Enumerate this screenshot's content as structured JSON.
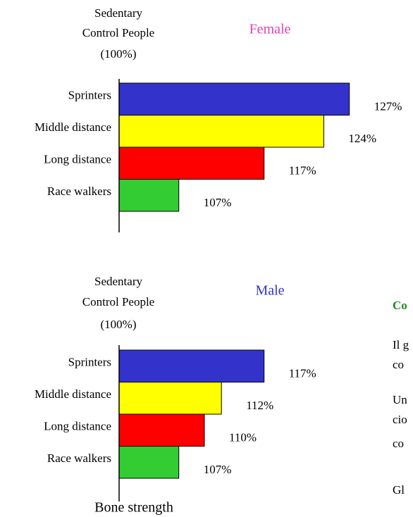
{
  "chart_data": [
    {
      "type": "bar",
      "orientation": "horizontal",
      "title": "Female",
      "title_color": "#e040c0",
      "axis_label": [
        "Sedentary",
        "Control People",
        "(100%)"
      ],
      "categories": [
        "Sprinters",
        "Middle distance",
        "Long distance",
        "Race walkers"
      ],
      "values": [
        127,
        124,
        117,
        107
      ],
      "value_labels": [
        "127%",
        "124%",
        "117%",
        "107%"
      ],
      "colors": [
        "#3333cc",
        "#ffff00",
        "#ff0000",
        "#33cc33"
      ],
      "xlim": [
        100,
        130
      ]
    },
    {
      "type": "bar",
      "orientation": "horizontal",
      "title": "Male",
      "title_color": "#3333cc",
      "axis_label": [
        "Sedentary",
        "Control People",
        "(100%)"
      ],
      "categories": [
        "Sprinters",
        "Middle distance",
        "Long distance",
        "Race walkers"
      ],
      "values": [
        117,
        112,
        110,
        107
      ],
      "value_labels": [
        "117%",
        "112%",
        "110%",
        "107%"
      ],
      "colors": [
        "#3333cc",
        "#ffff00",
        "#ff0000",
        "#33cc33"
      ],
      "xlim": [
        100,
        130
      ]
    }
  ],
  "footer": "Bone strength",
  "side_text": [
    "Co",
    "Il g",
    "co",
    "Un",
    "cio",
    "co",
    "Gl"
  ]
}
